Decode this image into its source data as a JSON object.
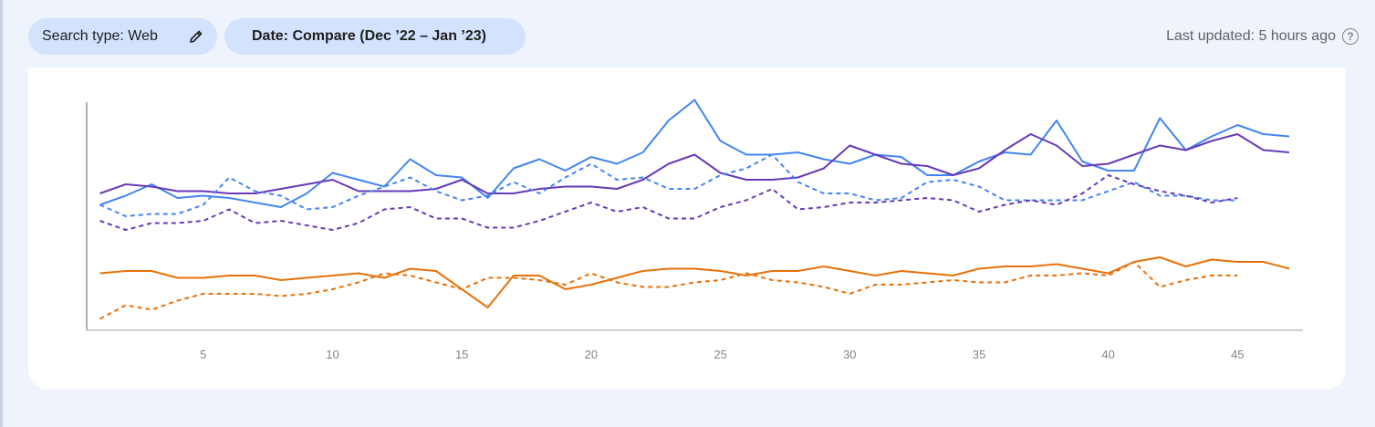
{
  "filters": {
    "search_type": "Search type: Web",
    "date": "Date: Compare  (Dec ’22 – Jan ’23)"
  },
  "status": {
    "last_updated": "Last updated: 5 hours ago"
  },
  "icons": {
    "edit": "pencil-icon",
    "help": "help-circle-icon"
  },
  "chart_data": {
    "type": "line",
    "title": "",
    "xlabel": "",
    "ylabel": "",
    "grid": false,
    "legend": "none",
    "xlim": [
      1,
      47
    ],
    "ylim": [
      0,
      100
    ],
    "x_ticks": [
      5,
      10,
      15,
      20,
      25,
      30,
      35,
      40,
      45
    ],
    "series": [
      {
        "color": "#4285f4",
        "style": "solid",
        "x": [
          1,
          2,
          3,
          4,
          5,
          6,
          7,
          8,
          9,
          10,
          11,
          12,
          13,
          14,
          15,
          16,
          17,
          18,
          19,
          20,
          21,
          22,
          23,
          24,
          25,
          26,
          27,
          28,
          29,
          30,
          31,
          32,
          33,
          34,
          35,
          36,
          37,
          38,
          39,
          40,
          41,
          42,
          43,
          44,
          45,
          46,
          47
        ],
        "values": [
          55,
          59,
          64,
          58,
          59,
          58,
          56,
          54,
          60,
          69,
          66,
          63,
          75,
          68,
          67,
          58,
          71,
          75,
          70,
          76,
          73,
          78,
          92,
          101,
          83,
          77,
          77,
          78,
          75,
          73,
          77,
          76,
          68,
          68,
          74,
          78,
          77,
          92,
          74,
          70,
          70,
          93,
          79,
          85,
          90,
          86,
          85
        ]
      },
      {
        "color": "#673ab7",
        "style": "solid",
        "x": [
          1,
          2,
          3,
          4,
          5,
          6,
          7,
          8,
          9,
          10,
          11,
          12,
          13,
          14,
          15,
          16,
          17,
          18,
          19,
          20,
          21,
          22,
          23,
          24,
          25,
          26,
          27,
          28,
          29,
          30,
          31,
          32,
          33,
          34,
          35,
          36,
          37,
          38,
          39,
          40,
          41,
          42,
          43,
          44,
          45,
          46,
          47
        ],
        "values": [
          60,
          64,
          63,
          61,
          61,
          60,
          60,
          62,
          64,
          66,
          61,
          61,
          61,
          62,
          66,
          60,
          60,
          62,
          63,
          63,
          62,
          66,
          73,
          77,
          69,
          66,
          66,
          67,
          71,
          81,
          77,
          73,
          72,
          68,
          71,
          79,
          86,
          81,
          72,
          73,
          77,
          81,
          79,
          83,
          86,
          79,
          78
        ]
      },
      {
        "color": "#4285f4",
        "style": "dashed",
        "x": [
          1,
          2,
          3,
          4,
          5,
          6,
          7,
          8,
          9,
          10,
          11,
          12,
          13,
          14,
          15,
          16,
          17,
          18,
          19,
          20,
          21,
          22,
          23,
          24,
          25,
          26,
          27,
          28,
          29,
          30,
          31,
          32,
          33,
          34,
          35,
          36,
          37,
          38,
          39,
          40,
          41,
          42,
          43,
          44,
          45
        ],
        "values": [
          55,
          50,
          51,
          51,
          55,
          67,
          61,
          59,
          53,
          54,
          59,
          63,
          67,
          61,
          57,
          59,
          65,
          60,
          67,
          73,
          66,
          67,
          62,
          62,
          68,
          71,
          77,
          65,
          60,
          60,
          57,
          58,
          65,
          66,
          63,
          57,
          57,
          57,
          57,
          61,
          65,
          59,
          59,
          57,
          57
        ]
      },
      {
        "color": "#673ab7",
        "style": "dashed",
        "x": [
          1,
          2,
          3,
          4,
          5,
          6,
          7,
          8,
          9,
          10,
          11,
          12,
          13,
          14,
          15,
          16,
          17,
          18,
          19,
          20,
          21,
          22,
          23,
          24,
          25,
          26,
          27,
          28,
          29,
          30,
          31,
          32,
          33,
          34,
          35,
          36,
          37,
          38,
          39,
          40,
          41,
          42,
          43,
          44,
          45
        ],
        "values": [
          48,
          44,
          47,
          47,
          48,
          53,
          47,
          48,
          46,
          44,
          47,
          53,
          54,
          49,
          49,
          45,
          45,
          48,
          52,
          56,
          52,
          54,
          49,
          49,
          54,
          57,
          62,
          53,
          54,
          56,
          56,
          57,
          58,
          57,
          52,
          55,
          57,
          55,
          60,
          68,
          64,
          61,
          59,
          56,
          58
        ]
      },
      {
        "color": "#e8710a",
        "style": "solid",
        "x": [
          1,
          2,
          3,
          4,
          5,
          6,
          7,
          8,
          9,
          10,
          11,
          12,
          13,
          14,
          15,
          16,
          17,
          18,
          19,
          20,
          21,
          22,
          23,
          24,
          25,
          26,
          27,
          28,
          29,
          30,
          31,
          32,
          33,
          34,
          35,
          36,
          37,
          38,
          39,
          40,
          41,
          42,
          43,
          44,
          45,
          46,
          47
        ],
        "values": [
          25,
          26,
          26,
          23,
          23,
          24,
          24,
          22,
          23,
          24,
          25,
          23,
          27,
          26,
          18,
          10,
          24,
          24,
          18,
          20,
          23,
          26,
          27,
          27,
          26,
          24,
          26,
          26,
          28,
          26,
          24,
          26,
          25,
          24,
          27,
          28,
          28,
          29,
          27,
          25,
          30,
          32,
          28,
          31,
          30,
          30,
          27
        ]
      },
      {
        "color": "#e8710a",
        "style": "dashed",
        "x": [
          1,
          2,
          3,
          4,
          5,
          6,
          7,
          8,
          9,
          10,
          11,
          12,
          13,
          14,
          15,
          16,
          17,
          18,
          19,
          20,
          21,
          22,
          23,
          24,
          25,
          26,
          27,
          28,
          29,
          30,
          31,
          32,
          33,
          34,
          35,
          36,
          37,
          38,
          39,
          40,
          41,
          42,
          43,
          44,
          45
        ],
        "values": [
          5,
          11,
          9,
          13,
          16,
          16,
          16,
          15,
          16,
          18,
          21,
          25,
          24,
          21,
          18,
          23,
          23,
          22,
          20,
          25,
          21,
          19,
          19,
          21,
          22,
          25,
          22,
          21,
          19,
          16,
          20,
          20,
          21,
          22,
          21,
          21,
          24,
          24,
          25,
          24,
          30,
          19,
          22,
          24,
          24
        ]
      }
    ]
  }
}
